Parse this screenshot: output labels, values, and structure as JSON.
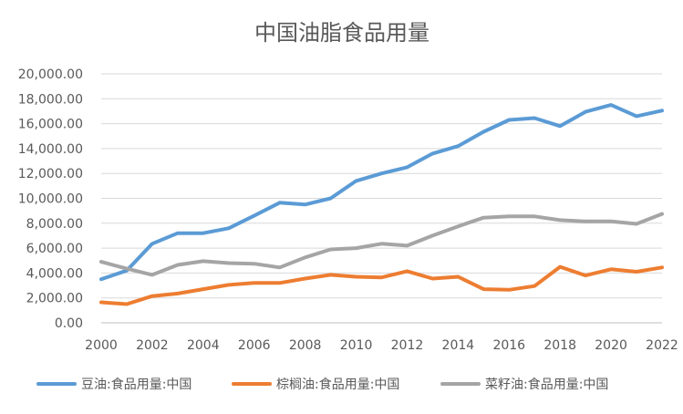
{
  "chart_data": {
    "type": "line",
    "title": "中国油脂食品用量",
    "xlabel": "",
    "ylabel": "",
    "x": [
      2000,
      2001,
      2002,
      2003,
      2004,
      2005,
      2006,
      2007,
      2008,
      2009,
      2010,
      2011,
      2012,
      2013,
      2014,
      2015,
      2016,
      2017,
      2018,
      2019,
      2020,
      2021,
      2022
    ],
    "x_ticks": [
      "2000",
      "2002",
      "2004",
      "2006",
      "2008",
      "2010",
      "2012",
      "2014",
      "2016",
      "2018",
      "2020",
      "2022"
    ],
    "y_ticks": [
      "0.00",
      "2,000.00",
      "4,000.00",
      "6,000.00",
      "8,000.00",
      "10,000.00",
      "12,000.00",
      "14,000.00",
      "16,000.00",
      "18,000.00",
      "20,000.00"
    ],
    "ylim": [
      0,
      20000
    ],
    "grid": true,
    "legend_position": "bottom",
    "series": [
      {
        "name": "豆油:食品用量:中国",
        "color": "#5B9BD5",
        "values": [
          3500,
          4200,
          6350,
          7200,
          7200,
          7600,
          8600,
          9650,
          9500,
          10000,
          11400,
          12000,
          12500,
          13600,
          14200,
          15350,
          16300,
          16450,
          15800,
          16950,
          17500,
          16600,
          17050
        ]
      },
      {
        "name": "棕榈油:食品用量:中国",
        "color": "#ED7D31",
        "values": [
          1650,
          1500,
          2150,
          2350,
          2700,
          3050,
          3200,
          3200,
          3550,
          3850,
          3700,
          3650,
          4150,
          3550,
          3700,
          2700,
          2650,
          2950,
          4500,
          3800,
          4300,
          4100,
          4450
        ]
      },
      {
        "name": "菜籽油:食品用量:中国",
        "color": "#A5A5A5",
        "values": [
          4900,
          4350,
          3850,
          4650,
          4950,
          4800,
          4750,
          4450,
          5250,
          5900,
          6000,
          6350,
          6200,
          7000,
          7750,
          8450,
          8550,
          8550,
          8250,
          8150,
          8150,
          7950,
          8750
        ]
      }
    ]
  }
}
